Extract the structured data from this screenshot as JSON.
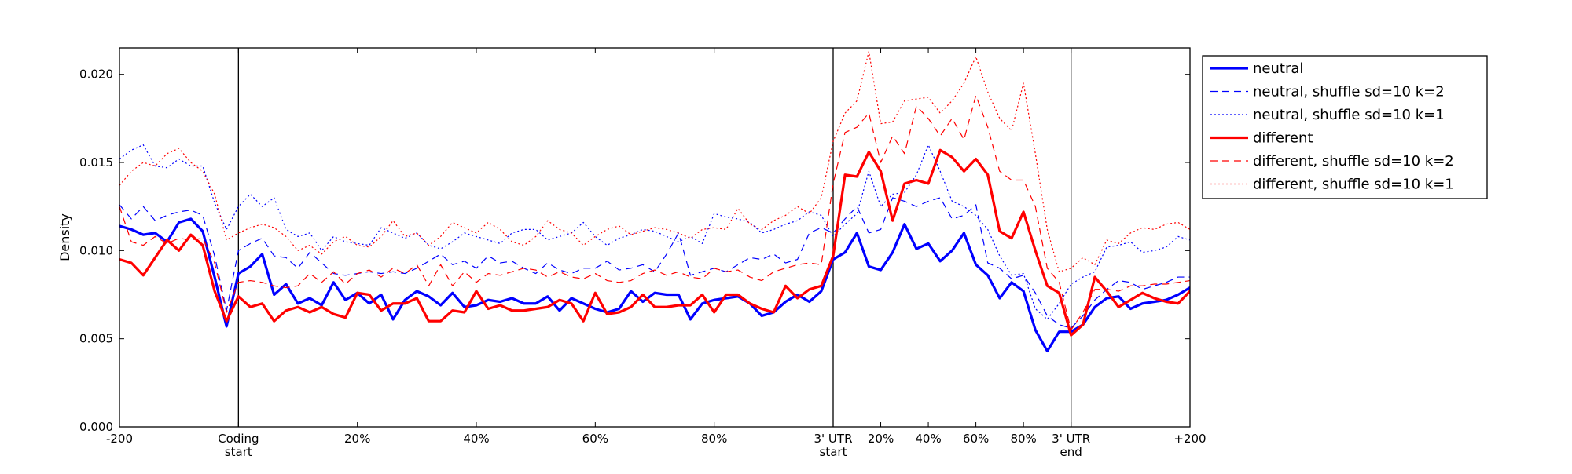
{
  "chart_data": {
    "type": "line",
    "ylabel": "Density",
    "ylim": [
      0,
      0.0215
    ],
    "yticks": [
      "0.000",
      "0.005",
      "0.010",
      "0.015",
      "0.020"
    ],
    "ytick_values": [
      0,
      0.005,
      0.01,
      0.015,
      0.02
    ],
    "xlim": [
      0,
      90
    ],
    "xticks": [
      {
        "x": 0,
        "label": "-200"
      },
      {
        "x": 10,
        "label": "Coding\nstart"
      },
      {
        "x": 20,
        "label": "20%"
      },
      {
        "x": 30,
        "label": "40%"
      },
      {
        "x": 40,
        "label": "60%"
      },
      {
        "x": 50,
        "label": "80%"
      },
      {
        "x": 60,
        "label": "3' UTR\nstart"
      },
      {
        "x": 64,
        "label": "20%"
      },
      {
        "x": 68,
        "label": "40%"
      },
      {
        "x": 72,
        "label": "60%"
      },
      {
        "x": 76,
        "label": "80%"
      },
      {
        "x": 80,
        "label": "3' UTR\nend"
      },
      {
        "x": 90,
        "label": "+200"
      }
    ],
    "vlines": [
      10,
      60,
      80
    ],
    "legend_position": "outside-right-top",
    "series": [
      {
        "name": "neutral",
        "color": "#0000ff",
        "style": "solid",
        "width": 3.2,
        "values": [
          0.0114,
          0.0112,
          0.0109,
          0.011,
          0.0105,
          0.0116,
          0.0118,
          0.0111,
          0.0085,
          0.0057,
          0.0087,
          0.0091,
          0.0098,
          0.0075,
          0.0081,
          0.007,
          0.0073,
          0.0069,
          0.0082,
          0.0072,
          0.0076,
          0.007,
          0.0075,
          0.0061,
          0.0072,
          0.0077,
          0.0074,
          0.0069,
          0.0076,
          0.0068,
          0.0069,
          0.0072,
          0.0071,
          0.0073,
          0.007,
          0.007,
          0.0074,
          0.0066,
          0.0073,
          0.007,
          0.0067,
          0.0065,
          0.0067,
          0.0077,
          0.0071,
          0.0076,
          0.0075,
          0.0075,
          0.0061,
          0.007,
          0.0072,
          0.0073,
          0.0074,
          0.007,
          0.0063,
          0.0065,
          0.0071,
          0.0075,
          0.0071,
          0.0077,
          0.0095,
          0.0099,
          0.011,
          0.0091,
          0.0089,
          0.0099,
          0.0115,
          0.0101,
          0.0104,
          0.0094,
          0.01,
          0.011,
          0.0092,
          0.0086,
          0.0073,
          0.0082,
          0.0077,
          0.0055,
          0.0043,
          0.0054,
          0.0054,
          0.0058,
          0.0068,
          0.0073,
          0.0074,
          0.0067,
          0.007,
          0.0071,
          0.0072,
          0.0075,
          0.0079
        ]
      },
      {
        "name": "neutral, shuffle sd=10 k=2",
        "color": "#0000ff",
        "style": "dashed",
        "width": 1.2,
        "values": [
          0.0126,
          0.0118,
          0.0125,
          0.0117,
          0.012,
          0.0122,
          0.0123,
          0.012,
          0.0097,
          0.0066,
          0.01,
          0.0104,
          0.0107,
          0.0097,
          0.0096,
          0.009,
          0.0099,
          0.0093,
          0.0087,
          0.0086,
          0.0087,
          0.0088,
          0.0087,
          0.0088,
          0.0087,
          0.009,
          0.0094,
          0.0098,
          0.0092,
          0.0094,
          0.009,
          0.0097,
          0.0093,
          0.0094,
          0.009,
          0.0087,
          0.0093,
          0.0089,
          0.0087,
          0.009,
          0.009,
          0.0094,
          0.0089,
          0.009,
          0.0092,
          0.0088,
          0.0098,
          0.011,
          0.0086,
          0.0088,
          0.009,
          0.0088,
          0.0092,
          0.0096,
          0.0095,
          0.0098,
          0.0093,
          0.0095,
          0.011,
          0.0113,
          0.011,
          0.0118,
          0.0125,
          0.011,
          0.0112,
          0.013,
          0.0128,
          0.0125,
          0.0128,
          0.013,
          0.0118,
          0.012,
          0.0126,
          0.0093,
          0.009,
          0.0084,
          0.0086,
          0.0076,
          0.0063,
          0.0058,
          0.0056,
          0.0063,
          0.0072,
          0.0078,
          0.0083,
          0.0082,
          0.0078,
          0.008,
          0.0082,
          0.0085,
          0.0085
        ]
      },
      {
        "name": "neutral, shuffle sd=10 k=1",
        "color": "#0000ff",
        "style": "dotted",
        "width": 1.2,
        "values": [
          0.0152,
          0.0157,
          0.016,
          0.0148,
          0.0147,
          0.0152,
          0.0148,
          0.0148,
          0.0127,
          0.0112,
          0.0125,
          0.0132,
          0.0125,
          0.013,
          0.0112,
          0.0108,
          0.011,
          0.01,
          0.0108,
          0.0105,
          0.0104,
          0.0103,
          0.0113,
          0.011,
          0.0107,
          0.011,
          0.0103,
          0.0101,
          0.0105,
          0.011,
          0.0108,
          0.0106,
          0.0104,
          0.011,
          0.0112,
          0.0112,
          0.0106,
          0.0108,
          0.011,
          0.0116,
          0.0108,
          0.0103,
          0.0107,
          0.0109,
          0.0112,
          0.0111,
          0.0108,
          0.0105,
          0.0108,
          0.0104,
          0.0121,
          0.0119,
          0.0118,
          0.0116,
          0.011,
          0.0112,
          0.0115,
          0.0117,
          0.0122,
          0.012,
          0.0108,
          0.0115,
          0.0121,
          0.0145,
          0.0125,
          0.0132,
          0.0133,
          0.0143,
          0.016,
          0.0145,
          0.0128,
          0.0125,
          0.012,
          0.0112,
          0.0097,
          0.0086,
          0.0087,
          0.0067,
          0.0061,
          0.007,
          0.0081,
          0.0085,
          0.0088,
          0.0102,
          0.0103,
          0.0105,
          0.0099,
          0.01,
          0.0102,
          0.0108,
          0.0106
        ]
      },
      {
        "name": "different",
        "color": "#ff0000",
        "style": "solid",
        "width": 3.2,
        "values": [
          0.0095,
          0.0093,
          0.0086,
          0.0096,
          0.0106,
          0.01,
          0.0109,
          0.0103,
          0.0077,
          0.006,
          0.0074,
          0.0068,
          0.007,
          0.006,
          0.0066,
          0.0068,
          0.0065,
          0.0068,
          0.0064,
          0.0062,
          0.0076,
          0.0075,
          0.0066,
          0.007,
          0.007,
          0.0073,
          0.006,
          0.006,
          0.0066,
          0.0065,
          0.0077,
          0.0067,
          0.0069,
          0.0066,
          0.0066,
          0.0067,
          0.0068,
          0.0072,
          0.007,
          0.006,
          0.0076,
          0.0064,
          0.0065,
          0.0068,
          0.0075,
          0.0068,
          0.0068,
          0.0069,
          0.0069,
          0.0075,
          0.0065,
          0.0075,
          0.0075,
          0.007,
          0.0067,
          0.0065,
          0.008,
          0.0073,
          0.0078,
          0.008,
          0.0097,
          0.0143,
          0.0142,
          0.0156,
          0.0145,
          0.0117,
          0.0138,
          0.014,
          0.0138,
          0.0157,
          0.0153,
          0.0145,
          0.0152,
          0.0143,
          0.0111,
          0.0107,
          0.0122,
          0.01,
          0.008,
          0.0076,
          0.0052,
          0.0058,
          0.0085,
          0.0077,
          0.0068,
          0.0072,
          0.0076,
          0.0073,
          0.0071,
          0.007,
          0.0077
        ]
      },
      {
        "name": "different, shuffle sd=10 k=2",
        "color": "#ff0000",
        "style": "dashed",
        "width": 1.2,
        "values": [
          0.0125,
          0.0105,
          0.0103,
          0.0108,
          0.0104,
          0.0107,
          0.0106,
          0.0107,
          0.0093,
          0.0065,
          0.0082,
          0.0083,
          0.0082,
          0.008,
          0.0079,
          0.008,
          0.0087,
          0.0082,
          0.0088,
          0.0081,
          0.0087,
          0.0089,
          0.0085,
          0.009,
          0.0087,
          0.0092,
          0.008,
          0.0092,
          0.008,
          0.0088,
          0.0082,
          0.0087,
          0.0086,
          0.0088,
          0.009,
          0.0089,
          0.0085,
          0.0088,
          0.0085,
          0.0084,
          0.0087,
          0.0083,
          0.0082,
          0.0083,
          0.0087,
          0.0089,
          0.0086,
          0.0088,
          0.0085,
          0.0084,
          0.009,
          0.0088,
          0.0089,
          0.0085,
          0.0083,
          0.0088,
          0.009,
          0.0092,
          0.0093,
          0.0092,
          0.0138,
          0.0167,
          0.017,
          0.0178,
          0.015,
          0.0165,
          0.0155,
          0.0182,
          0.0175,
          0.0165,
          0.0175,
          0.0163,
          0.0188,
          0.017,
          0.0145,
          0.014,
          0.014,
          0.0125,
          0.009,
          0.0082,
          0.0055,
          0.0065,
          0.0078,
          0.0078,
          0.0077,
          0.008,
          0.008,
          0.0081,
          0.0081,
          0.0082,
          0.0083
        ]
      },
      {
        "name": "different, shuffle sd=10 k=1",
        "color": "#ff0000",
        "style": "dotted",
        "width": 1.2,
        "values": [
          0.0137,
          0.0145,
          0.015,
          0.0148,
          0.0155,
          0.0158,
          0.015,
          0.0145,
          0.0132,
          0.0106,
          0.011,
          0.0113,
          0.0115,
          0.0113,
          0.0108,
          0.01,
          0.0103,
          0.0098,
          0.0105,
          0.0108,
          0.0103,
          0.0102,
          0.0108,
          0.0117,
          0.0108,
          0.011,
          0.0103,
          0.0108,
          0.0116,
          0.0113,
          0.011,
          0.0116,
          0.0112,
          0.0105,
          0.0103,
          0.0108,
          0.0117,
          0.0112,
          0.011,
          0.0103,
          0.0108,
          0.0112,
          0.0114,
          0.0109,
          0.0111,
          0.0113,
          0.0112,
          0.011,
          0.0107,
          0.0112,
          0.0113,
          0.0112,
          0.0124,
          0.0115,
          0.0112,
          0.0117,
          0.012,
          0.0125,
          0.0121,
          0.013,
          0.0162,
          0.0178,
          0.0185,
          0.0213,
          0.0172,
          0.0173,
          0.0185,
          0.0186,
          0.0187,
          0.0178,
          0.0185,
          0.0195,
          0.021,
          0.019,
          0.0175,
          0.0168,
          0.0195,
          0.0155,
          0.0112,
          0.0088,
          0.009,
          0.0096,
          0.0092,
          0.0106,
          0.0104,
          0.011,
          0.0113,
          0.0112,
          0.0115,
          0.0116,
          0.0112
        ]
      }
    ]
  }
}
